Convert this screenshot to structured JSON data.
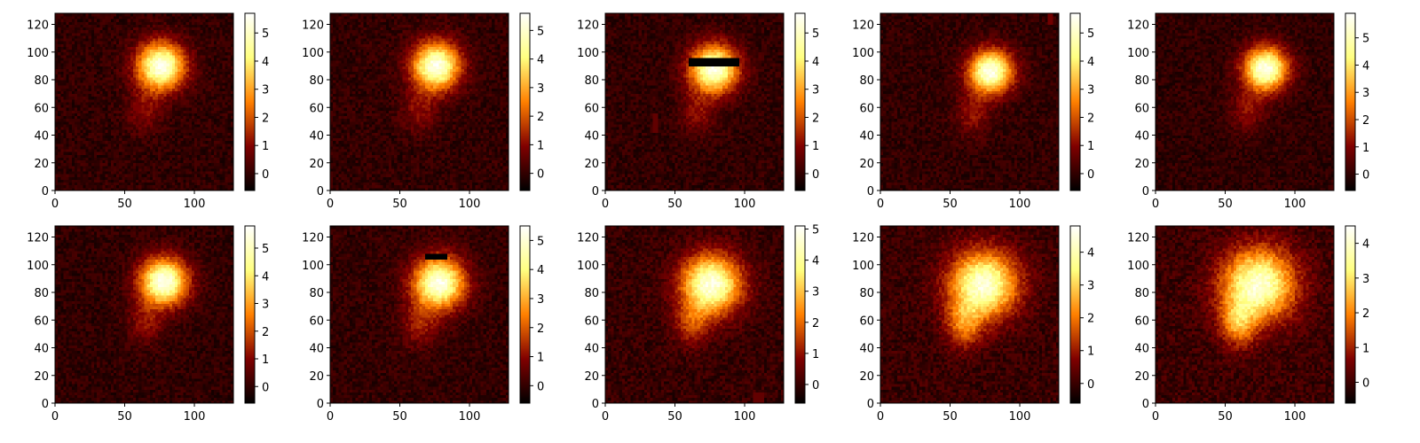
{
  "chart_data": {
    "type": "heatmap",
    "colormap": "afmhot",
    "figure_layout": {
      "rows": 2,
      "cols": 5
    },
    "panels": [
      {
        "row": 0,
        "col": 0,
        "xlim": [
          0,
          128
        ],
        "ylim": [
          0,
          128
        ],
        "xticks": [
          0,
          50,
          100
        ],
        "yticks": [
          0,
          20,
          40,
          60,
          80,
          100,
          120
        ],
        "colorbar": {
          "vmin": -0.6,
          "vmax": 5.7,
          "ticks": [
            0,
            1,
            2,
            3,
            4,
            5
          ]
        },
        "blobs": [
          {
            "x": 76,
            "y": 90,
            "sigma_x": 12,
            "sigma_y": 12,
            "peak": 5.5
          },
          {
            "x": 64,
            "y": 58,
            "sigma_x": 9,
            "sigma_y": 11,
            "peak": 1.0
          }
        ],
        "artifacts": []
      },
      {
        "row": 0,
        "col": 1,
        "xlim": [
          0,
          128
        ],
        "ylim": [
          0,
          128
        ],
        "xticks": [
          0,
          50,
          100
        ],
        "yticks": [
          0,
          20,
          40,
          60,
          80,
          100,
          120
        ],
        "colorbar": {
          "vmin": -0.6,
          "vmax": 5.6,
          "ticks": [
            0,
            1,
            2,
            3,
            4,
            5
          ]
        },
        "blobs": [
          {
            "x": 76,
            "y": 90,
            "sigma_x": 12,
            "sigma_y": 12,
            "peak": 5.4
          },
          {
            "x": 64,
            "y": 58,
            "sigma_x": 9,
            "sigma_y": 11,
            "peak": 1.0
          }
        ],
        "artifacts": []
      },
      {
        "row": 0,
        "col": 2,
        "xlim": [
          0,
          128
        ],
        "ylim": [
          0,
          128
        ],
        "xticks": [
          0,
          50,
          100
        ],
        "yticks": [
          0,
          20,
          40,
          60,
          80,
          100,
          120
        ],
        "colorbar": {
          "vmin": -0.6,
          "vmax": 5.7,
          "ticks": [
            0,
            1,
            2,
            3,
            4,
            5
          ]
        },
        "blobs": [
          {
            "x": 78,
            "y": 88,
            "sigma_x": 12,
            "sigma_y": 12,
            "peak": 5.5
          },
          {
            "x": 66,
            "y": 56,
            "sigma_x": 9,
            "sigma_y": 11,
            "peak": 1.0
          }
        ],
        "artifacts": [
          {
            "x0": 60,
            "x1": 96,
            "y0": 91,
            "y1": 95,
            "value": -0.6
          },
          {
            "x0": 35,
            "x1": 37,
            "y0": 43,
            "y1": 55,
            "value": 0.6
          }
        ]
      },
      {
        "row": 0,
        "col": 3,
        "xlim": [
          0,
          128
        ],
        "ylim": [
          0,
          128
        ],
        "xticks": [
          0,
          50,
          100
        ],
        "yticks": [
          0,
          20,
          40,
          60,
          80,
          100,
          120
        ],
        "colorbar": {
          "vmin": -0.6,
          "vmax": 5.7,
          "ticks": [
            0,
            1,
            2,
            3,
            4,
            5
          ]
        },
        "blobs": [
          {
            "x": 79,
            "y": 86,
            "sigma_x": 11,
            "sigma_y": 11,
            "peak": 5.5
          },
          {
            "x": 66,
            "y": 55,
            "sigma_x": 9,
            "sigma_y": 11,
            "peak": 1.1
          }
        ],
        "artifacts": [
          {
            "x0": 121,
            "x1": 123,
            "y0": 120,
            "y1": 127,
            "value": 0.8
          }
        ]
      },
      {
        "row": 0,
        "col": 4,
        "xlim": [
          0,
          128
        ],
        "ylim": [
          0,
          128
        ],
        "xticks": [
          0,
          50,
          100
        ],
        "yticks": [
          0,
          20,
          40,
          60,
          80,
          100,
          120
        ],
        "colorbar": {
          "vmin": -0.6,
          "vmax": 5.9,
          "ticks": [
            0,
            1,
            2,
            3,
            4,
            5
          ]
        },
        "blobs": [
          {
            "x": 79,
            "y": 88,
            "sigma_x": 11,
            "sigma_y": 11,
            "peak": 5.7
          },
          {
            "x": 66,
            "y": 58,
            "sigma_x": 9,
            "sigma_y": 11,
            "peak": 1.1
          }
        ],
        "artifacts": []
      },
      {
        "row": 1,
        "col": 0,
        "xlim": [
          0,
          128
        ],
        "ylim": [
          0,
          128
        ],
        "xticks": [
          0,
          50,
          100
        ],
        "yticks": [
          0,
          20,
          40,
          60,
          80,
          100,
          120
        ],
        "colorbar": {
          "vmin": -0.6,
          "vmax": 5.8,
          "ticks": [
            0,
            1,
            2,
            3,
            4,
            5
          ]
        },
        "blobs": [
          {
            "x": 78,
            "y": 88,
            "sigma_x": 12,
            "sigma_y": 12,
            "peak": 5.6
          },
          {
            "x": 65,
            "y": 58,
            "sigma_x": 9,
            "sigma_y": 11,
            "peak": 1.1
          }
        ],
        "artifacts": []
      },
      {
        "row": 1,
        "col": 1,
        "xlim": [
          0,
          128
        ],
        "ylim": [
          0,
          128
        ],
        "xticks": [
          0,
          50,
          100
        ],
        "yticks": [
          0,
          20,
          40,
          60,
          80,
          100,
          120
        ],
        "colorbar": {
          "vmin": -0.6,
          "vmax": 5.5,
          "ticks": [
            0,
            1,
            2,
            3,
            4,
            5
          ]
        },
        "blobs": [
          {
            "x": 78,
            "y": 87,
            "sigma_x": 13,
            "sigma_y": 13,
            "peak": 5.3
          },
          {
            "x": 64,
            "y": 57,
            "sigma_x": 9,
            "sigma_y": 11,
            "peak": 1.2
          }
        ],
        "artifacts": [
          {
            "x0": 69,
            "x1": 84,
            "y0": 105,
            "y1": 107,
            "value": -0.6
          }
        ]
      },
      {
        "row": 1,
        "col": 2,
        "xlim": [
          0,
          128
        ],
        "ylim": [
          0,
          128
        ],
        "xticks": [
          0,
          50,
          100
        ],
        "yticks": [
          0,
          20,
          40,
          60,
          80,
          100,
          120
        ],
        "colorbar": {
          "vmin": -0.6,
          "vmax": 5.1,
          "ticks": [
            0,
            1,
            2,
            3,
            4,
            5
          ]
        },
        "blobs": [
          {
            "x": 76,
            "y": 86,
            "sigma_x": 15,
            "sigma_y": 15,
            "peak": 4.8
          },
          {
            "x": 62,
            "y": 57,
            "sigma_x": 9,
            "sigma_y": 11,
            "peak": 1.4
          }
        ],
        "artifacts": [
          {
            "x0": 106,
            "x1": 114,
            "y0": 1,
            "y1": 7,
            "value": 0.5
          }
        ]
      },
      {
        "row": 1,
        "col": 3,
        "xlim": [
          0,
          128
        ],
        "ylim": [
          0,
          128
        ],
        "xticks": [
          0,
          50,
          100
        ],
        "yticks": [
          0,
          20,
          40,
          60,
          80,
          100,
          120
        ],
        "colorbar": {
          "vmin": -0.6,
          "vmax": 4.8,
          "ticks": [
            0,
            1,
            2,
            3,
            4
          ]
        },
        "blobs": [
          {
            "x": 74,
            "y": 86,
            "sigma_x": 17,
            "sigma_y": 17,
            "peak": 4.4
          },
          {
            "x": 60,
            "y": 57,
            "sigma_x": 9,
            "sigma_y": 12,
            "peak": 1.8
          }
        ],
        "artifacts": []
      },
      {
        "row": 1,
        "col": 4,
        "xlim": [
          0,
          128
        ],
        "ylim": [
          0,
          128
        ],
        "xticks": [
          0,
          50,
          100
        ],
        "yticks": [
          0,
          20,
          40,
          60,
          80,
          100,
          120
        ],
        "colorbar": {
          "vmin": -0.6,
          "vmax": 4.5,
          "ticks": [
            0,
            1,
            2,
            3,
            4
          ]
        },
        "blobs": [
          {
            "x": 74,
            "y": 86,
            "sigma_x": 18,
            "sigma_y": 18,
            "peak": 4.1
          },
          {
            "x": 59,
            "y": 58,
            "sigma_x": 9,
            "sigma_y": 12,
            "peak": 2.0
          }
        ],
        "artifacts": []
      }
    ]
  }
}
